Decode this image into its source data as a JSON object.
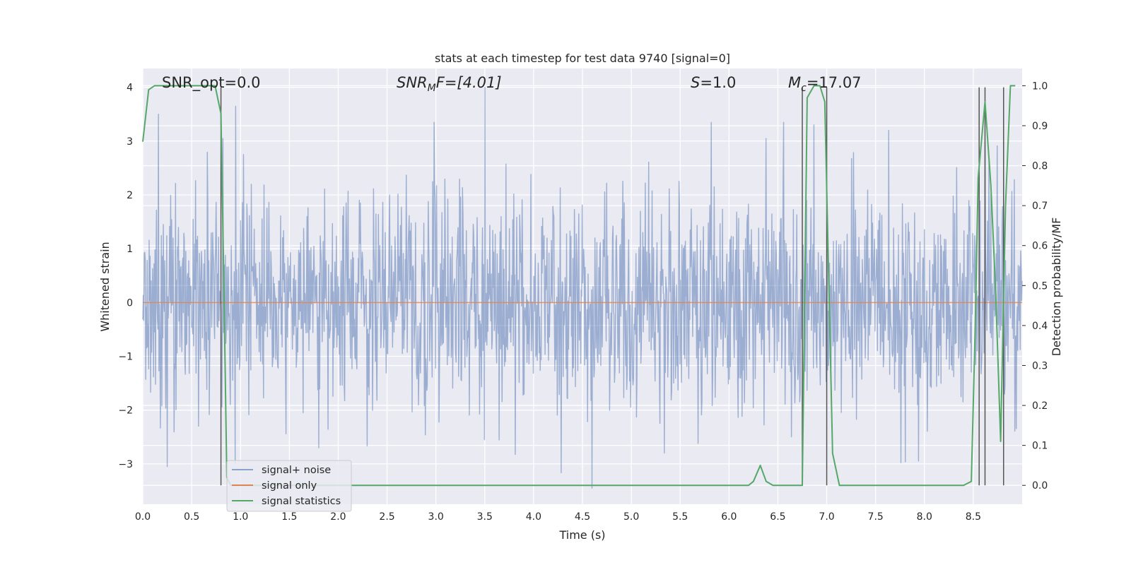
{
  "chart_data": {
    "type": "line",
    "title": "stats at each timestep for test data 9740 [signal=0]",
    "xlabel": "Time (s)",
    "ylabel": "Whitened strain",
    "ylabel_right": "Detection probability/MF",
    "xlim": [
      0,
      9
    ],
    "ylim": [
      -3.75,
      4.35
    ],
    "ylim_right": [
      -0.0473,
      1.0431
    ],
    "x_ticks": [
      "0.0",
      "0.5",
      "1.0",
      "1.5",
      "2.0",
      "2.5",
      "3.0",
      "3.5",
      "4.0",
      "4.5",
      "5.0",
      "5.5",
      "6.0",
      "6.5",
      "7.0",
      "7.5",
      "8.0",
      "8.5"
    ],
    "y_ticks": [
      "−3",
      "−2",
      "−1",
      "0",
      "1",
      "2",
      "3",
      "4"
    ],
    "y_ticks_right": [
      "0.0",
      "0.1",
      "0.2",
      "0.3",
      "0.4",
      "0.5",
      "0.6",
      "0.7",
      "0.8",
      "0.9",
      "1.0"
    ],
    "grid": true,
    "legend_placement": "lower-left",
    "annotations": {
      "snr_opt": "SNR_opt=0.0",
      "snr_mf_base": "SNR",
      "snr_mf_sub": "M",
      "snr_mf_rest": "F=[4.01]",
      "s_sym": "S",
      "s_rest": "=1.0",
      "mc_sym": "M",
      "mc_sub": "c",
      "mc_rest": "=17.07"
    },
    "colors": {
      "background": "#eaeaf2",
      "grid": "#ffffff",
      "signal_noise": "#4c72b0",
      "signal_only": "#dd8452",
      "signal_statistics": "#55a868",
      "vlines": "#555555"
    },
    "series": [
      {
        "name": "signal+ noise",
        "noise_sigma": 1.0,
        "n_samples": 1800,
        "peaks": [
          [
            0.16,
            3.5
          ],
          [
            0.82,
            3.05
          ],
          [
            0.95,
            3.65
          ],
          [
            2.98,
            3.35
          ],
          [
            3.5,
            4.0
          ],
          [
            5.82,
            3.35
          ],
          [
            6.38,
            3.05
          ],
          [
            6.56,
            3.35
          ],
          [
            6.87,
            3.3
          ],
          [
            8.62,
            3.0
          ],
          [
            4.6,
            -3.45
          ],
          [
            0.25,
            -3.05
          ],
          [
            1.8,
            -2.7
          ]
        ]
      },
      {
        "name": "signal only",
        "x": [
          0,
          9
        ],
        "y": [
          0,
          0
        ]
      },
      {
        "name": "signal statistics",
        "axis": "right",
        "x": [
          0.0,
          0.06,
          0.12,
          0.2,
          0.3,
          0.4,
          0.5,
          0.6,
          0.7,
          0.74,
          0.8,
          0.83,
          0.86,
          0.9,
          1.0,
          2.0,
          3.0,
          4.0,
          5.0,
          6.0,
          6.2,
          6.25,
          6.32,
          6.38,
          6.45,
          6.6,
          6.7,
          6.75,
          6.8,
          6.87,
          6.93,
          6.98,
          7.06,
          7.13,
          7.2,
          7.5,
          8.0,
          8.2,
          8.4,
          8.48,
          8.52,
          8.55,
          8.62,
          8.68,
          8.73,
          8.78,
          8.83,
          8.88,
          8.93
        ],
        "y": [
          0.86,
          0.99,
          1.0,
          1.0,
          1.0,
          1.0,
          1.0,
          1.0,
          1.0,
          1.0,
          0.93,
          0.5,
          0.02,
          0.0,
          0.0,
          0.0,
          0.0,
          0.0,
          0.0,
          0.0,
          0.0,
          0.01,
          0.05,
          0.01,
          0.0,
          0.0,
          0.0,
          0.0,
          0.97,
          1.0,
          1.0,
          0.96,
          0.08,
          0.0,
          0.0,
          0.0,
          0.0,
          0.0,
          0.0,
          0.01,
          0.4,
          0.77,
          0.96,
          0.75,
          0.48,
          0.11,
          0.7,
          1.0,
          1.0
        ]
      }
    ],
    "vlines_x": [
      0.8,
      6.75,
      7.0,
      8.56,
      8.62,
      8.81
    ]
  }
}
